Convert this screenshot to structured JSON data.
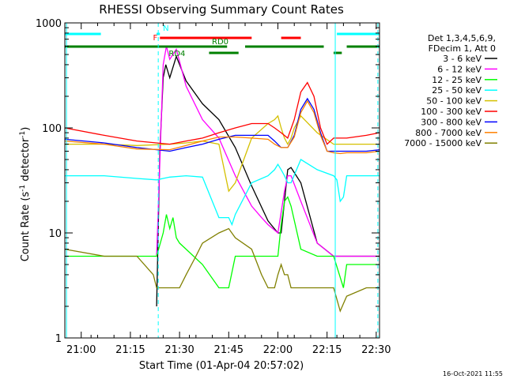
{
  "chart_data": {
    "type": "line",
    "title": "RHESSI Observing Summary Count Rates",
    "xlabel": "Start Time (01-Apr-04 20:57:02)",
    "ylabel_main": "Count Rate (s",
    "ylabel_sup1": "-1",
    "ylabel_mid": " detector",
    "ylabel_sup2": "-1",
    "ylabel_end": ")",
    "y_scale": "log",
    "ylim": [
      1,
      1000
    ],
    "xlim_minutes": [
      -2.0,
      94.0
    ],
    "x_ticks": [
      {
        "minute": 3,
        "label": "21:00"
      },
      {
        "minute": 18,
        "label": "21:15"
      },
      {
        "minute": 33,
        "label": "21:30"
      },
      {
        "minute": 48,
        "label": "21:45"
      },
      {
        "minute": 63,
        "label": "22:00"
      },
      {
        "minute": 78,
        "label": "22:15"
      },
      {
        "minute": 93,
        "label": "22:30"
      }
    ],
    "y_ticks": [
      {
        "value": 1,
        "label": "1"
      },
      {
        "value": 10,
        "label": "10"
      },
      {
        "value": 100,
        "label": "100"
      },
      {
        "value": 1000,
        "label": "1000"
      }
    ],
    "legend_header": [
      "Det 1,3,4,5,6,9,",
      "FDecim 1, Att 0"
    ],
    "series": [
      {
        "name": "3 - 6 keV",
        "color": "#000000",
        "x": [
          -2,
          25,
          26,
          27,
          28,
          28.8,
          30,
          32,
          35,
          40,
          45,
          50,
          55,
          60,
          63,
          64,
          65,
          66,
          67,
          70,
          75,
          80,
          85,
          90,
          94
        ],
        "y": [
          null,
          null,
          2,
          60,
          300,
          400,
          300,
          480,
          280,
          170,
          120,
          65,
          28,
          13,
          10,
          10,
          20,
          40,
          42,
          30,
          8,
          6,
          6,
          6,
          6
        ]
      },
      {
        "name": "6 - 12 keV",
        "color": "#ff00ff",
        "x": [
          -2,
          25,
          26,
          28,
          29,
          30,
          32,
          35,
          40,
          45,
          50,
          55,
          58,
          60,
          63,
          65,
          66,
          67,
          70,
          75,
          80,
          85,
          90,
          94
        ],
        "y": [
          null,
          null,
          6,
          400,
          600,
          450,
          560,
          250,
          120,
          80,
          35,
          18,
          14,
          12,
          10,
          25,
          35,
          35,
          20,
          8,
          6,
          6,
          6,
          6
        ]
      },
      {
        "name": "12 - 25 keV",
        "color": "#00ff00",
        "x": [
          -2,
          10,
          20,
          26,
          28,
          29,
          30,
          31,
          32,
          33,
          35,
          40,
          45,
          48,
          50,
          55,
          58,
          60,
          62,
          63,
          64,
          65,
          66,
          67,
          70,
          75,
          80,
          83,
          84,
          90,
          94
        ],
        "y": [
          6,
          6,
          6,
          6,
          10,
          15,
          11,
          14,
          9,
          8,
          7,
          5,
          3,
          3,
          6,
          6,
          6,
          6,
          6,
          6,
          12,
          20,
          22,
          18,
          7,
          6,
          6,
          3,
          5,
          5,
          5
        ]
      },
      {
        "name": "25 - 50 keV",
        "color": "#00ffff",
        "x": [
          -2,
          10,
          20,
          26,
          28,
          30,
          35,
          40,
          45,
          48,
          49,
          50,
          55,
          60,
          62,
          63,
          64,
          65,
          66,
          67,
          70,
          75,
          80,
          81,
          82,
          83,
          84,
          90,
          94
        ],
        "y": [
          35,
          35,
          33,
          32,
          33,
          34,
          35,
          34,
          14,
          14,
          12,
          15,
          30,
          35,
          40,
          45,
          40,
          35,
          30,
          30,
          50,
          40,
          35,
          32,
          20,
          22,
          35,
          35,
          35
        ]
      },
      {
        "name": "50 - 100 keV",
        "color": "#d4c000",
        "x": [
          -2,
          10,
          20,
          30,
          35,
          40,
          45,
          48,
          50,
          55,
          60,
          62,
          63,
          64,
          65,
          66,
          67,
          68,
          70,
          75,
          80,
          84,
          90,
          94
        ],
        "y": [
          70,
          70,
          68,
          70,
          72,
          75,
          70,
          25,
          30,
          80,
          110,
          120,
          130,
          100,
          80,
          70,
          80,
          100,
          130,
          90,
          70,
          70,
          70,
          70
        ]
      },
      {
        "name": "100 - 300 keV",
        "color": "#ff0000",
        "x": [
          -2,
          10,
          20,
          30,
          35,
          40,
          45,
          50,
          55,
          60,
          62,
          64,
          66,
          68,
          70,
          72,
          74,
          76,
          78,
          80,
          82,
          84,
          90,
          94
        ],
        "y": [
          100,
          85,
          75,
          70,
          75,
          80,
          90,
          100,
          110,
          110,
          100,
          90,
          80,
          120,
          220,
          270,
          200,
          100,
          70,
          80,
          80,
          80,
          85,
          90
        ]
      },
      {
        "name": "300 - 800 keV",
        "color": "#0000ff",
        "x": [
          -2,
          10,
          20,
          30,
          35,
          40,
          45,
          50,
          55,
          60,
          62,
          64,
          66,
          68,
          70,
          72,
          74,
          76,
          78,
          80,
          82,
          84,
          90,
          94
        ],
        "y": [
          78,
          72,
          65,
          60,
          65,
          70,
          78,
          85,
          85,
          85,
          75,
          65,
          65,
          85,
          150,
          190,
          150,
          90,
          60,
          60,
          60,
          60,
          60,
          62
        ]
      },
      {
        "name": "800 - 7000 keV",
        "color": "#ff8000",
        "x": [
          -2,
          10,
          20,
          30,
          35,
          40,
          45,
          50,
          55,
          60,
          62,
          64,
          66,
          68,
          70,
          72,
          74,
          76,
          78,
          80,
          82,
          84,
          90,
          94
        ],
        "y": [
          75,
          70,
          63,
          62,
          68,
          75,
          82,
          82,
          80,
          78,
          70,
          65,
          65,
          82,
          140,
          180,
          140,
          85,
          60,
          58,
          57,
          58,
          58,
          60
        ]
      },
      {
        "name": "7000 - 15000 keV",
        "color": "#808000",
        "x": [
          -2,
          10,
          20,
          25,
          26,
          28,
          30,
          33,
          35,
          38,
          40,
          45,
          48,
          50,
          55,
          58,
          60,
          62,
          63,
          64,
          65,
          66,
          67,
          70,
          75,
          80,
          82,
          84,
          90,
          94
        ],
        "y": [
          7,
          6,
          6,
          4,
          3,
          3,
          3,
          3,
          4,
          6,
          8,
          10,
          11,
          9,
          7,
          4,
          3,
          3,
          4,
          5,
          4,
          4,
          3,
          3,
          3,
          3,
          1.8,
          2.5,
          3,
          3
        ]
      }
    ],
    "status_bars": [
      {
        "label": "N",
        "color": "#00ffff",
        "segments": [
          [
            -2,
            9
          ],
          [
            26,
            27
          ],
          [
            81,
            94
          ]
        ]
      },
      {
        "label": "F",
        "color": "#ff0000",
        "segments": [
          [
            27,
            55
          ],
          [
            64,
            70
          ]
        ]
      },
      {
        "label": "RD0",
        "color": "#008000",
        "segments": [
          [
            -2,
            47.5
          ],
          [
            53,
            77
          ],
          [
            84,
            94
          ]
        ]
      },
      {
        "label": "RD4",
        "color": "#008000",
        "segments": [
          [
            42,
            51
          ],
          [
            80,
            82.5
          ]
        ]
      }
    ],
    "vertical_lines": {
      "solid": [
        -1.5,
        80.5
      ],
      "dashed": [
        26.5,
        93.5
      ],
      "color": "#00ffff"
    },
    "footer_date": "16-Oct-2021 11:55"
  }
}
